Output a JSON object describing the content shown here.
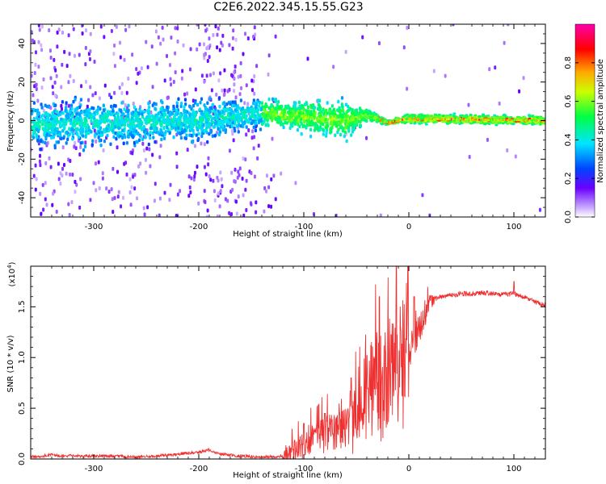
{
  "title": "C2E6.2022.345.15.55.G23",
  "chart_data": [
    {
      "type": "heatmap",
      "name": "spectrogram",
      "xlabel": "Height of straight line (km)",
      "ylabel": "Frequency (Hz)",
      "xlim": [
        -360,
        130
      ],
      "ylim": [
        -50,
        50
      ],
      "xticks": [
        -300,
        -200,
        -100,
        0,
        100
      ],
      "yticks": [
        -40,
        -20,
        0,
        20,
        40
      ],
      "colorbar": {
        "label": "Normalized spectral amplitude",
        "range": [
          0,
          1
        ],
        "ticks": [
          "0.0",
          "0.2",
          "0.4",
          "0.6",
          "0.8"
        ],
        "colormap": [
          "#ffffff",
          "#6a00ff",
          "#0044ff",
          "#00e5ff",
          "#00ff44",
          "#ffff00",
          "#ff8800",
          "#ff0000",
          "#ff00aa"
        ]
      },
      "ridge": [
        {
          "x": -360,
          "center": -2,
          "width": 10
        },
        {
          "x": -200,
          "center": 0,
          "width": 9
        },
        {
          "x": -140,
          "center": 4,
          "width": 6
        },
        {
          "x": -100,
          "center": 2,
          "width": 7
        },
        {
          "x": -60,
          "center": 0,
          "width": 8
        },
        {
          "x": -40,
          "center": 3,
          "width": 3
        },
        {
          "x": -20,
          "center": -1,
          "width": 1
        },
        {
          "x": 0,
          "center": 1,
          "width": 2
        },
        {
          "x": 130,
          "center": 0,
          "width": 2
        }
      ]
    },
    {
      "type": "line",
      "name": "snr",
      "xlabel": "Height of straight line (km)",
      "ylabel": "SNR (10 * v/v)",
      "yscale_label": "(x10",
      "yscale_exp": "4",
      "yscale_close": ")",
      "xlim": [
        -360,
        130
      ],
      "ylim": [
        0,
        1.9
      ],
      "xticks": [
        -300,
        -200,
        -100,
        0,
        100
      ],
      "yticks": [
        "0.0",
        "0.5",
        "1.0",
        "1.5"
      ],
      "color": "#f03030",
      "series": [
        {
          "x": [
            -360,
            -340,
            -320,
            -300,
            -280,
            -260,
            -240,
            -220,
            -200,
            -190,
            -180,
            -160,
            -140,
            -120,
            -110,
            -100,
            -90,
            -80,
            -70,
            -60,
            -50,
            -40,
            -30,
            -25,
            -20,
            -15,
            -10,
            -5,
            0,
            5,
            10,
            15,
            20,
            30,
            40,
            50,
            60,
            70,
            80,
            90,
            100,
            110,
            120,
            130
          ],
          "y": [
            0.02,
            0.04,
            0.03,
            0.03,
            0.03,
            0.02,
            0.03,
            0.05,
            0.07,
            0.09,
            0.05,
            0.03,
            0.02,
            0.03,
            0.08,
            0.15,
            0.22,
            0.25,
            0.3,
            0.35,
            0.5,
            0.65,
            0.8,
            0.75,
            0.9,
            0.95,
            0.95,
            1.0,
            1.1,
            1.2,
            1.3,
            1.42,
            1.55,
            1.6,
            1.62,
            1.63,
            1.63,
            1.64,
            1.63,
            1.62,
            1.63,
            1.6,
            1.55,
            1.52
          ]
        }
      ],
      "spikes": [
        {
          "x": -100,
          "y": 0.35
        },
        {
          "x": -80,
          "y": 0.45
        },
        {
          "x": -55,
          "y": 0.8
        },
        {
          "x": -40,
          "y": 1.02
        },
        {
          "x": -28,
          "y": 1.6
        },
        {
          "x": -12,
          "y": 1.9
        },
        {
          "x": 5,
          "y": 1.6
        },
        {
          "x": 100,
          "y": 1.75
        }
      ]
    }
  ]
}
